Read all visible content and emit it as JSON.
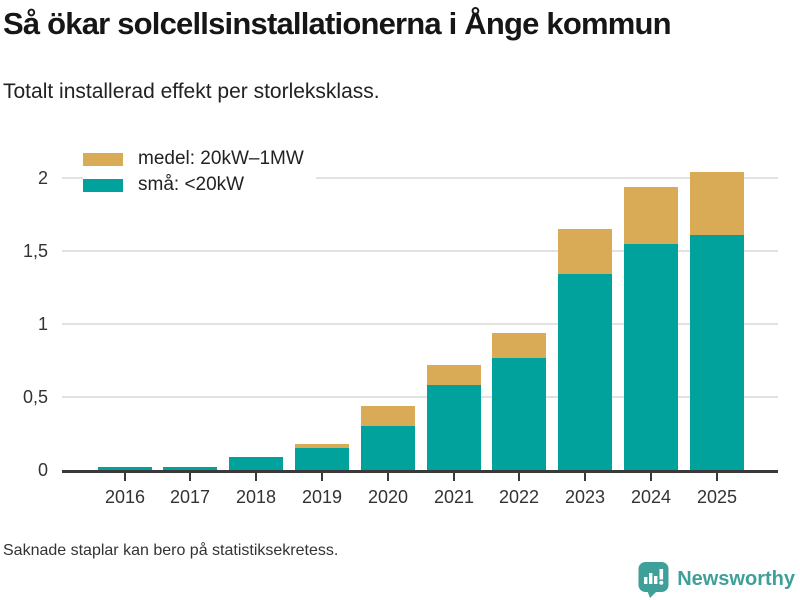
{
  "header": {
    "title": "Så ökar solcellsinstallationerna i Ånge kommun",
    "subtitle": "Totalt installerad effekt per storleksklass."
  },
  "footer": {
    "note": "Saknade staplar kan bero på statistiksekretess.",
    "brand": "Newsworthy"
  },
  "colors": {
    "medel": "#d9ab57",
    "sma": "#00a29b",
    "grid": "#e2e2e2",
    "axis": "#3a3a3a",
    "text": "#333333",
    "title_text": "#161616",
    "brand": "#3f9f99",
    "background": "#ffffff"
  },
  "chart_data": {
    "type": "bar",
    "stacked": true,
    "title": "Så ökar solcellsinstallationerna i Ånge kommun",
    "subtitle": "Totalt installerad effekt per storleksklass.",
    "categories": [
      "2016",
      "2017",
      "2018",
      "2019",
      "2020",
      "2021",
      "2022",
      "2023",
      "2024",
      "2025"
    ],
    "series": [
      {
        "name": "medel: 20kW–1MW",
        "stack_position": "top",
        "color_key": "medel",
        "values": [
          0,
          0,
          0,
          0.03,
          0.14,
          0.14,
          0.17,
          0.31,
          0.39,
          0.43
        ]
      },
      {
        "name": "små: <20kW",
        "stack_position": "bottom",
        "color_key": "sma",
        "values": [
          0.02,
          0.02,
          0.09,
          0.15,
          0.3,
          0.58,
          0.77,
          1.34,
          1.55,
          1.61
        ]
      }
    ],
    "totals": [
      0.02,
      0.02,
      0.09,
      0.18,
      0.44,
      0.72,
      0.94,
      1.65,
      1.94,
      2.04
    ],
    "yticks": [
      {
        "value": 0,
        "label": "0"
      },
      {
        "value": 0.5,
        "label": "0,5"
      },
      {
        "value": 1,
        "label": "1"
      },
      {
        "value": 1.5,
        "label": "1,5"
      },
      {
        "value": 2,
        "label": "2"
      }
    ],
    "ylim": [
      0,
      2.1
    ],
    "grid": "horizontal",
    "legend_position": "top-left"
  }
}
